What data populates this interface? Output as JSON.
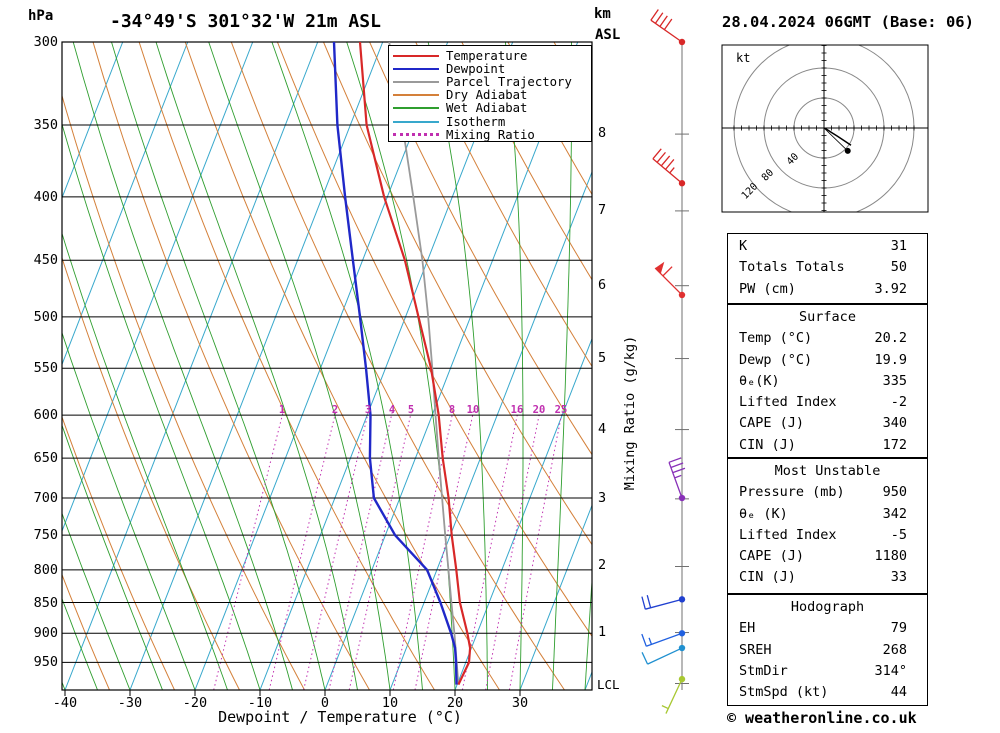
{
  "header": {
    "hpa_label": "hPa",
    "title": "-34°49'S 301°32'W 21m ASL",
    "km_label": "km",
    "asl_label": "ASL",
    "date": "28.04.2024 06GMT (Base: 06)"
  },
  "axes": {
    "pressure_ticks": [
      300,
      350,
      400,
      450,
      500,
      550,
      600,
      650,
      700,
      750,
      800,
      850,
      900,
      950
    ],
    "temp_ticks": [
      -40,
      -30,
      -20,
      -10,
      0,
      10,
      20,
      30
    ],
    "km_ticks": [
      1,
      2,
      3,
      4,
      5,
      6,
      7,
      8
    ],
    "lcl_label": "LCL",
    "xlabel": "Dewpoint / Temperature (°C)",
    "mixing_ratio_axis_label": "Mixing Ratio (g/kg)"
  },
  "colors": {
    "temperature": "#d82828",
    "dewpoint": "#2028c8",
    "parcel": "#9a9a9a",
    "dry_adiabat": "#d4803a",
    "wet_adiabat": "#2f9e2f",
    "isotherm": "#38a8cc",
    "mixing_ratio": "#c030b0",
    "grid": "#000000",
    "staff": "#707070"
  },
  "legend": [
    {
      "label": "Temperature",
      "color_key": "temperature",
      "dash": false
    },
    {
      "label": "Dewpoint",
      "color_key": "dewpoint",
      "dash": false
    },
    {
      "label": "Parcel Trajectory",
      "color_key": "parcel",
      "dash": false
    },
    {
      "label": "Dry Adiabat",
      "color_key": "dry_adiabat",
      "dash": false
    },
    {
      "label": "Wet Adiabat",
      "color_key": "wet_adiabat",
      "dash": false
    },
    {
      "label": "Isotherm",
      "color_key": "isotherm",
      "dash": false
    },
    {
      "label": "Mixing Ratio",
      "color_key": "mixing_ratio",
      "dash": true
    }
  ],
  "chart_data": {
    "type": "line",
    "skew_t": {
      "pressure_range": [
        300,
        1000
      ],
      "isotherm_step_C": 10,
      "dry_adiabat_theta_K": {
        "min": 230,
        "max": 410,
        "step": 10
      },
      "wet_adiabat_thetaw_C": {
        "min": -40,
        "max": 40,
        "step": 5
      },
      "mixing_ratio_lines_gkg": [
        1,
        2,
        3,
        4,
        5,
        8,
        10,
        16,
        20,
        25
      ]
    },
    "temperature_profile": [
      [
        990,
        20.2
      ],
      [
        950,
        20.5
      ],
      [
        925,
        19.8
      ],
      [
        900,
        18.5
      ],
      [
        850,
        15.5
      ],
      [
        800,
        13.0
      ],
      [
        750,
        10.2
      ],
      [
        700,
        7.5
      ],
      [
        650,
        4.2
      ],
      [
        600,
        1.0
      ],
      [
        550,
        -3.0
      ],
      [
        500,
        -8.0
      ],
      [
        450,
        -13.5
      ],
      [
        400,
        -20.5
      ],
      [
        350,
        -27.5
      ],
      [
        300,
        -33.5
      ]
    ],
    "dewpoint_profile": [
      [
        990,
        19.9
      ],
      [
        950,
        18.5
      ],
      [
        925,
        17.5
      ],
      [
        900,
        16.0
      ],
      [
        850,
        12.5
      ],
      [
        800,
        8.5
      ],
      [
        750,
        1.5
      ],
      [
        700,
        -4.0
      ],
      [
        650,
        -7.0
      ],
      [
        600,
        -9.5
      ],
      [
        550,
        -13.0
      ],
      [
        500,
        -17.0
      ],
      [
        450,
        -21.5
      ],
      [
        400,
        -26.5
      ],
      [
        350,
        -32.0
      ],
      [
        300,
        -37.5
      ]
    ],
    "parcel_profile": [
      [
        990,
        20.2
      ],
      [
        950,
        18.6
      ],
      [
        900,
        16.5
      ],
      [
        850,
        14.2
      ],
      [
        800,
        11.8
      ],
      [
        750,
        9.2
      ],
      [
        700,
        6.5
      ],
      [
        650,
        3.6
      ],
      [
        600,
        0.5
      ],
      [
        550,
        -2.8
      ],
      [
        500,
        -6.5
      ],
      [
        450,
        -10.8
      ],
      [
        400,
        -16.0
      ],
      [
        350,
        -22.0
      ],
      [
        300,
        -29.0
      ]
    ],
    "lcl_pressure": 988,
    "wind_barbs": [
      {
        "pressure": 300,
        "speed_kt": 40,
        "dir_deg": 305,
        "color": "#d82828"
      },
      {
        "pressure": 390,
        "speed_kt": 45,
        "dir_deg": 310,
        "color": "#d82828"
      },
      {
        "pressure": 480,
        "speed_kt": 60,
        "dir_deg": 315,
        "color": "#e03030"
      },
      {
        "pressure": 700,
        "speed_kt": 35,
        "dir_deg": 340,
        "color": "#8830b8"
      },
      {
        "pressure": 845,
        "speed_kt": 20,
        "dir_deg": 255,
        "color": "#2040d0"
      },
      {
        "pressure": 900,
        "speed_kt": 15,
        "dir_deg": 250,
        "color": "#2060e0"
      },
      {
        "pressure": 925,
        "speed_kt": 10,
        "dir_deg": 245,
        "color": "#2090d0"
      },
      {
        "pressure": 980,
        "speed_kt": 5,
        "dir_deg": 205,
        "color": "#a8c832"
      }
    ]
  },
  "hodograph": {
    "kt_label": "kt",
    "rings_kt": [
      40,
      80,
      120
    ],
    "ring_labels": [
      "120",
      "80",
      "40"
    ],
    "trace_kt": [
      [
        0,
        0
      ],
      [
        4,
        -2
      ],
      [
        10,
        -6
      ],
      [
        18,
        -11
      ],
      [
        27,
        -17
      ],
      [
        36,
        -23
      ]
    ],
    "storm_motion": {
      "dir_deg": 314,
      "speed_kt": 44
    }
  },
  "info_boxes": [
    {
      "rows": [
        [
          "K",
          "31"
        ],
        [
          "Totals Totals",
          "50"
        ],
        [
          "PW (cm)",
          "3.92"
        ]
      ]
    },
    {
      "header": "Surface",
      "rows": [
        [
          "Temp (°C)",
          "20.2"
        ],
        [
          "Dewp (°C)",
          "19.9"
        ],
        [
          "θₑ(K)",
          "335"
        ],
        [
          "Lifted Index",
          "-2"
        ],
        [
          "CAPE (J)",
          "340"
        ],
        [
          "CIN (J)",
          "172"
        ]
      ]
    },
    {
      "header": "Most Unstable",
      "rows": [
        [
          "Pressure (mb)",
          "950"
        ],
        [
          "θₑ (K)",
          "342"
        ],
        [
          "Lifted Index",
          "-5"
        ],
        [
          "CAPE (J)",
          "1180"
        ],
        [
          "CIN (J)",
          "33"
        ]
      ]
    },
    {
      "header": "Hodograph",
      "rows": [
        [
          "EH",
          "79"
        ],
        [
          "SREH",
          "268"
        ],
        [
          "StmDir",
          "314°"
        ],
        [
          "StmSpd (kt)",
          "44"
        ]
      ]
    }
  ],
  "footer": {
    "copyright": "© weatheronline.co.uk"
  }
}
